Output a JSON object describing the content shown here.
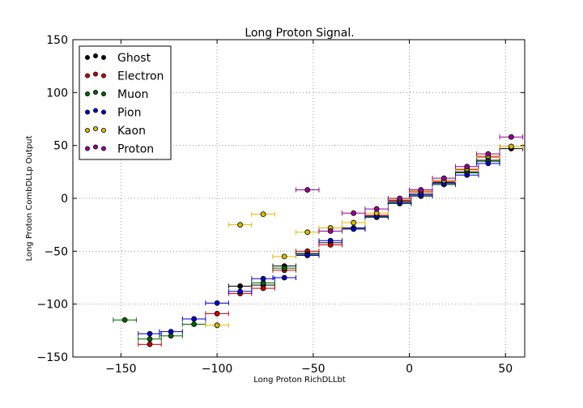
{
  "chart_data": {
    "type": "scatter",
    "title": "Long Proton Signal.",
    "xlabel": "Long Proton RichDLLbt",
    "ylabel": "Long Proton CombDLLp Output",
    "xlim": [
      -175,
      60
    ],
    "ylim": [
      -150,
      150
    ],
    "xticks": [
      -150,
      -100,
      -50,
      0,
      50
    ],
    "yticks": [
      -150,
      -100,
      -50,
      0,
      50,
      100,
      150
    ],
    "xtick_labels": [
      "−150",
      "−100",
      "−50",
      "0",
      "50"
    ],
    "ytick_labels": [
      "−150",
      "−100",
      "−50",
      "0",
      "50",
      "100",
      "150"
    ],
    "grid": true,
    "legend_position": "upper-left",
    "series": [
      {
        "name": "Ghost",
        "color": "#000000",
        "xerr": 6,
        "points": [
          [
            -88,
            -83
          ],
          [
            -76,
            -82
          ],
          [
            -65,
            -64
          ],
          [
            -53,
            -52
          ],
          [
            -41,
            -42
          ],
          [
            -29,
            -28
          ],
          [
            -17,
            -17
          ],
          [
            -5,
            -3
          ],
          [
            6,
            4
          ],
          [
            18,
            15
          ],
          [
            30,
            25
          ],
          [
            41,
            36
          ],
          [
            53,
            47
          ]
        ]
      },
      {
        "name": "Electron",
        "color": "#cc0000",
        "xerr": 6,
        "points": [
          [
            -135,
            -138
          ],
          [
            -100,
            -109
          ],
          [
            -88,
            -90
          ],
          [
            -76,
            -85
          ],
          [
            -65,
            -68
          ],
          [
            -53,
            -50
          ],
          [
            -41,
            -44
          ],
          [
            -29,
            -29
          ],
          [
            -17,
            -16
          ],
          [
            -5,
            -2
          ],
          [
            6,
            6
          ],
          [
            18,
            16
          ],
          [
            30,
            27
          ],
          [
            41,
            39
          ],
          [
            53,
            49
          ]
        ]
      },
      {
        "name": "Muon",
        "color": "#006400",
        "xerr": 6,
        "points": [
          [
            -148,
            -115
          ],
          [
            -135,
            -133
          ],
          [
            -124,
            -130
          ],
          [
            -112,
            -119
          ],
          [
            -76,
            -80
          ],
          [
            -65,
            -66
          ],
          [
            -53,
            -53
          ],
          [
            -29,
            -29
          ],
          [
            -17,
            -18
          ],
          [
            -5,
            -5
          ],
          [
            6,
            2
          ],
          [
            18,
            13
          ],
          [
            30,
            24
          ],
          [
            41,
            35
          ]
        ]
      },
      {
        "name": "Pion",
        "color": "#0000cc",
        "xerr": 6,
        "points": [
          [
            -135,
            -128
          ],
          [
            -124,
            -126
          ],
          [
            -112,
            -114
          ],
          [
            -100,
            -99
          ],
          [
            -88,
            -88
          ],
          [
            -76,
            -76
          ],
          [
            -65,
            -75
          ],
          [
            -53,
            -54
          ],
          [
            -41,
            -40
          ],
          [
            -29,
            -29
          ],
          [
            -17,
            -17
          ],
          [
            -5,
            -4
          ],
          [
            6,
            3
          ],
          [
            18,
            14
          ],
          [
            30,
            22
          ],
          [
            41,
            33
          ]
        ]
      },
      {
        "name": "Kaon",
        "color": "#ddbb00",
        "xerr": 6,
        "points": [
          [
            -100,
            -120
          ],
          [
            -88,
            -25
          ],
          [
            -76,
            -15
          ],
          [
            -65,
            -55
          ],
          [
            -53,
            -32
          ],
          [
            -41,
            -28
          ],
          [
            -29,
            -23
          ],
          [
            -17,
            -14
          ],
          [
            -5,
            -1
          ],
          [
            6,
            7
          ],
          [
            18,
            17
          ],
          [
            30,
            28
          ],
          [
            41,
            40
          ],
          [
            53,
            49
          ]
        ]
      },
      {
        "name": "Proton",
        "color": "#990099",
        "xerr": 6,
        "points": [
          [
            -53,
            8
          ],
          [
            -41,
            -31
          ],
          [
            -29,
            -14
          ],
          [
            -17,
            -10
          ],
          [
            -5,
            0
          ],
          [
            6,
            8
          ],
          [
            18,
            19
          ],
          [
            30,
            30
          ],
          [
            41,
            42
          ],
          [
            53,
            58
          ]
        ]
      }
    ]
  }
}
